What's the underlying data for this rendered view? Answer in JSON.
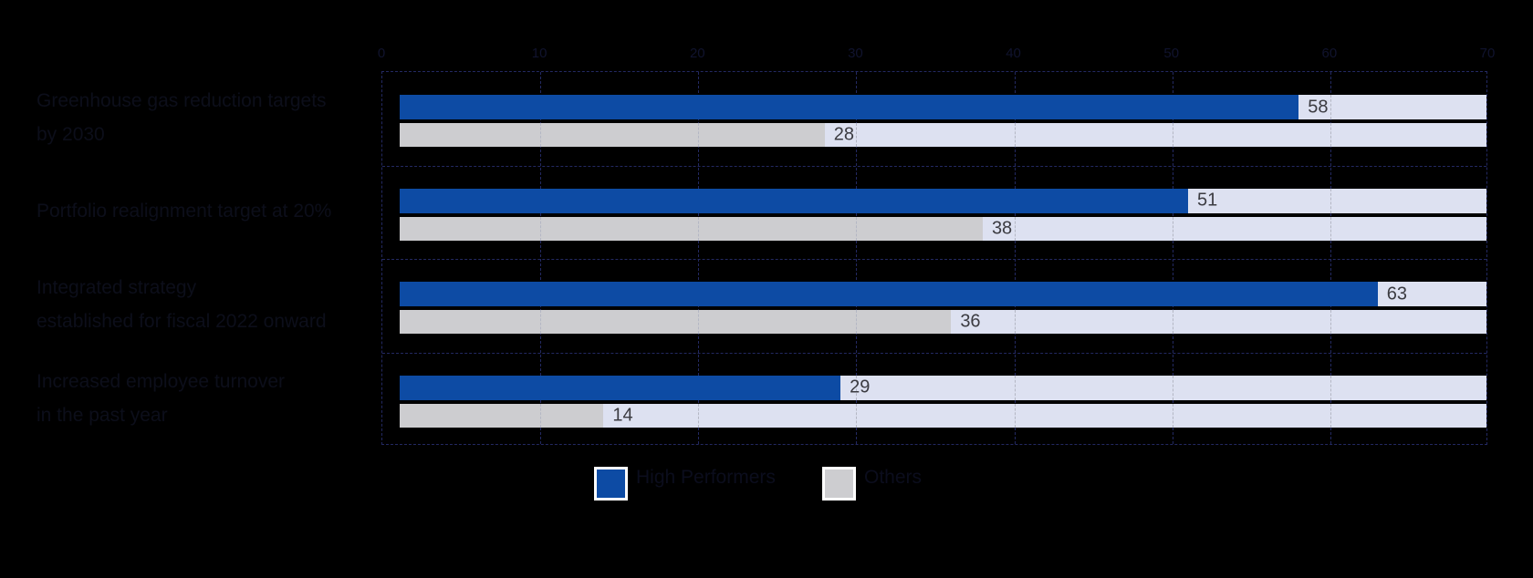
{
  "chart_data": {
    "type": "bar",
    "orientation": "horizontal",
    "title": "",
    "categories": [
      "Greenhouse gas reduction targets\nby 2030",
      "Portfolio realignment target at 20%",
      "Integrated strategy\nestablished for fiscal 2022 onward",
      "Increased employee turnover\nin the past year"
    ],
    "series": [
      {
        "name": "High Performers",
        "color": "#0d4ba4",
        "values": [
          58,
          51,
          63,
          29
        ]
      },
      {
        "name": "Others",
        "color": "#cdcdd0",
        "values": [
          28,
          38,
          36,
          14
        ]
      }
    ],
    "value_labels": {
      "High Performers": [
        "58",
        "51",
        "63",
        "29"
      ],
      "Others": [
        "28",
        "38",
        "36",
        "14"
      ]
    },
    "xlim": [
      0,
      70
    ],
    "x_ticks": [
      "0",
      "10",
      "20",
      "30",
      "40",
      "50",
      "60",
      "70"
    ],
    "axis_position": "top",
    "grid": true,
    "legend_position": "bottom"
  },
  "colors": {
    "background": "#000000",
    "bar_blue": "#0d4ba4",
    "bar_gray": "#cdcdd0",
    "track": "#dde1f1",
    "frame_dashed": "#232962",
    "grid_on_track": "#b4b7c4",
    "value_text": "#3b3b41",
    "faint_text": "#0c0e1a"
  },
  "legend": {
    "items": [
      {
        "label": "High Performers",
        "swatch_color": "#0d4ba4"
      },
      {
        "label": "Others",
        "swatch_color": "#cdcdd0"
      }
    ]
  }
}
